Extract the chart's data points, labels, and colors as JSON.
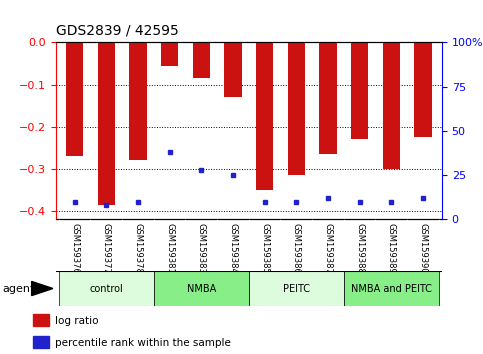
{
  "title": "GDS2839 / 42595",
  "categories": [
    "GSM159376",
    "GSM159377",
    "GSM159378",
    "GSM159381",
    "GSM159383",
    "GSM159384",
    "GSM159385",
    "GSM159386",
    "GSM159387",
    "GSM159388",
    "GSM159389",
    "GSM159390"
  ],
  "log_ratio": [
    -0.27,
    -0.385,
    -0.278,
    -0.055,
    -0.085,
    -0.13,
    -0.35,
    -0.315,
    -0.265,
    -0.23,
    -0.3,
    -0.225
  ],
  "percentile": [
    10,
    8,
    10,
    38,
    28,
    25,
    10,
    10,
    12,
    10,
    10,
    12
  ],
  "groups": [
    {
      "label": "control",
      "start": 0,
      "end": 3,
      "color": "#ddfcdd"
    },
    {
      "label": "NMBA",
      "start": 3,
      "end": 6,
      "color": "#88ee88"
    },
    {
      "label": "PEITC",
      "start": 6,
      "end": 9,
      "color": "#ddfcdd"
    },
    {
      "label": "NMBA and PEITC",
      "start": 9,
      "end": 12,
      "color": "#88ee88"
    }
  ],
  "ylim_left": [
    -0.42,
    0.0
  ],
  "ylim_right": [
    0,
    100
  ],
  "yticks_left": [
    -0.4,
    -0.3,
    -0.2,
    -0.1,
    0.0
  ],
  "yticks_right": [
    0,
    25,
    50,
    75,
    100
  ],
  "bar_color": "#cc1111",
  "dot_color": "#2222cc",
  "agent_label": "agent",
  "legend_log": "log ratio",
  "legend_pct": "percentile rank within the sample"
}
